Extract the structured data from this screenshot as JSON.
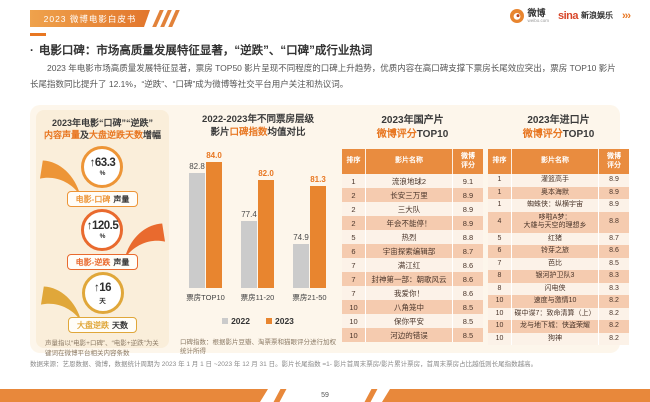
{
  "page": {
    "number": "59"
  },
  "colors": {
    "accent": "#E87722",
    "banner_orange": "#E8883B",
    "bar_2022": "#CBCBCB",
    "bar_2023": "#E8852F",
    "table_header": "#E98C3F",
    "row_light": "#FCF2E8",
    "row_salmon": "#F5CBAF",
    "stat1": "#ED9537",
    "stat2": "#E96A2E",
    "stat3": "#E0A73A"
  },
  "header": {
    "banner": "2023 微博电影白皮书",
    "weibo_logo": "微博",
    "weibo_sub": "weibo.com",
    "sina_logo": "sina",
    "sina_suffix": "新浪娱乐",
    "arrows": "›››"
  },
  "section": {
    "bullet": "·",
    "title": "电影口碑：市场高质量发展特征显著，“逆跌”、“口碑”成行业热词",
    "paragraph": "2023 年电影市场高质量发展特征显著，票房 TOP50 影片呈现不同程度的口碑上升趋势，优质内容在高口碑支撑下票房长尾效应突出，票房 TOP10 影片长尾指数同比提升了 12.1%，“逆跌”、“口碑”成为微博等社交平台用户关注和热议词。"
  },
  "stats_panel": {
    "title_line1": "2023年电影“口碑”“逆跌”",
    "title_line2_hl1": "内容声量",
    "title_line2_mid": "及",
    "title_line2_hl2": "大盘逆跌天数",
    "title_line2_end": "增幅",
    "items": [
      {
        "arrow": "↑",
        "value": "63.3",
        "unit": "%",
        "label_highlight": "电影-口碑",
        "label_rest": "声量",
        "color": "#ED9537",
        "side": "left"
      },
      {
        "arrow": "↑",
        "value": "120.5",
        "unit": "%",
        "label_highlight": "电影-逆跌",
        "label_rest": "声量",
        "color": "#E96A2E",
        "side": "right"
      },
      {
        "arrow": "↑",
        "value": "16",
        "unit": "天",
        "label_highlight": "大盘逆跌",
        "label_rest": "天数",
        "color": "#E0A73A",
        "side": "left"
      }
    ],
    "footnote": "声量指以“电影+口碑”、“电影+逆跌”为关键词在微博平台相关内容条数"
  },
  "chart_panel": {
    "title_line1": "2022-2023年不同票房层级",
    "title_line2_pre": "影片",
    "title_line2_hl": "口碑指数",
    "title_line2_post": "均值对比",
    "footnote": "口碑指数：根据影片豆瓣、淘票票和猫眼评分进行加权统计所得"
  },
  "chart_data": {
    "type": "bar",
    "title": "2022-2023年不同票房层级影片口碑指数均值对比",
    "categories": [
      "票房TOP10",
      "票房11-20",
      "票房21-50"
    ],
    "series": [
      {
        "name": "2022",
        "color": "#CBCBCB",
        "values": [
          82.8,
          77.4,
          74.9
        ]
      },
      {
        "name": "2023",
        "color": "#E8852F",
        "values": [
          84.0,
          82.0,
          81.3
        ]
      }
    ],
    "baseline": 70,
    "ylim": [
      70,
      85
    ],
    "grid": false,
    "legend_position": "bottom",
    "value_labels": true
  },
  "domestic_table": {
    "title_line1": "2023年国产片",
    "title_hl": "微博评分",
    "title_suffix": "TOP10",
    "headers": [
      "排序",
      "影片名称",
      "微博\n评分"
    ],
    "rows": [
      [
        "1",
        "流浪地球2",
        "9.1"
      ],
      [
        "2",
        "长安三万里",
        "8.9"
      ],
      [
        "2",
        "三大队",
        "8.9"
      ],
      [
        "2",
        "年会不能停！",
        "8.9"
      ],
      [
        "5",
        "热烈",
        "8.8"
      ],
      [
        "6",
        "宇宙探索编辑部",
        "8.7"
      ],
      [
        "7",
        "满江红",
        "8.6"
      ],
      [
        "7",
        "封神第一部：朝歌风云",
        "8.6"
      ],
      [
        "7",
        "我爱你！",
        "8.6"
      ],
      [
        "10",
        "八角笼中",
        "8.5"
      ],
      [
        "10",
        "保你平安",
        "8.5"
      ],
      [
        "10",
        "河边的错误",
        "8.5"
      ]
    ]
  },
  "import_table": {
    "title_line1": "2023年进口片",
    "title_hl": "微博评分",
    "title_suffix": "TOP10",
    "headers": [
      "排序",
      "影片名称",
      "微博\n评分"
    ],
    "rows": [
      [
        "1",
        "灌篮高手",
        "8.9"
      ],
      [
        "1",
        "奥本海默",
        "8.9"
      ],
      [
        "1",
        "蜘蛛侠：纵横宇宙",
        "8.9"
      ],
      [
        "4",
        "哆啦A梦：\n大雄与天空的理想乡",
        "8.8"
      ],
      [
        "5",
        "红猪",
        "8.7"
      ],
      [
        "6",
        "铃芽之旅",
        "8.6"
      ],
      [
        "7",
        "芭比",
        "8.5"
      ],
      [
        "8",
        "银河护卫队3",
        "8.3"
      ],
      [
        "8",
        "闪电侠",
        "8.3"
      ],
      [
        "10",
        "速度与激情10",
        "8.2"
      ],
      [
        "10",
        "碟中谍7：致命清算（上）",
        "8.2"
      ],
      [
        "10",
        "龙与地下城：侠盗荣耀",
        "8.2"
      ],
      [
        "10",
        "狗神",
        "8.2"
      ]
    ]
  },
  "footer": {
    "source": "数据来源：艺恩数据、微博，数据统计周期为 2023 年 1 月 1 日 ~2023 年 12 月 31 日。影片长尾指数 =1- 影片首周末票房/影片累计票房，首周末票房占比越低则长尾指数越高。"
  }
}
